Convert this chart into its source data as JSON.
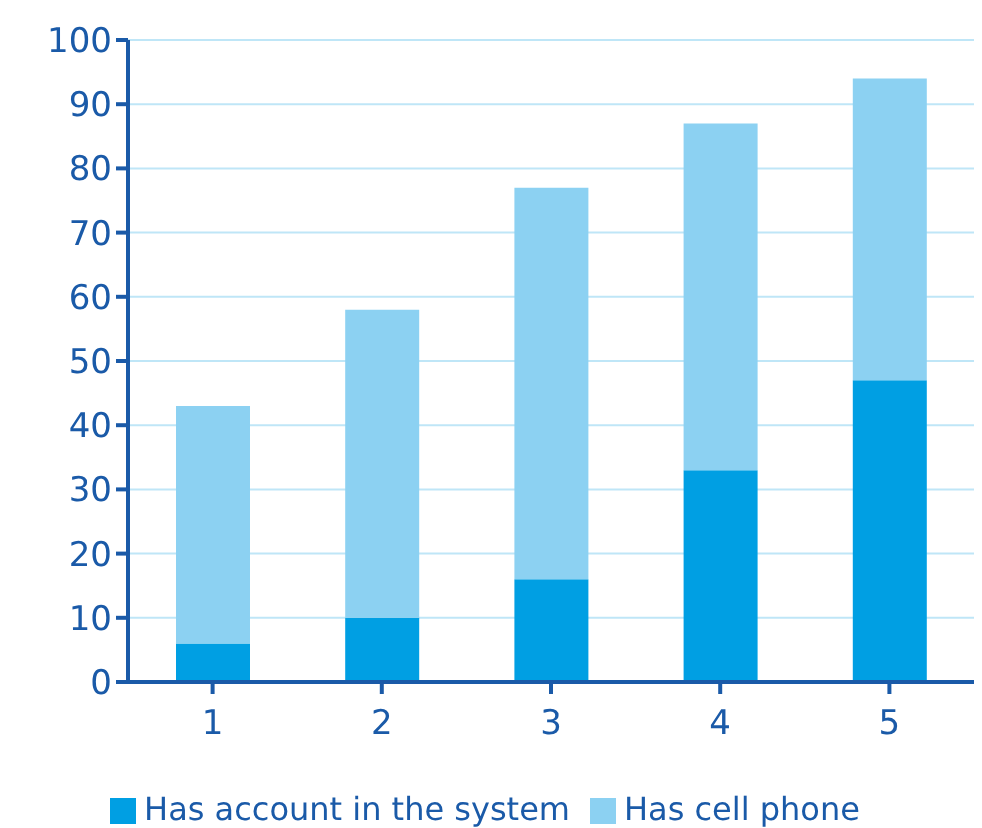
{
  "chart_data": {
    "type": "bar",
    "stacked": true,
    "categories": [
      "1",
      "2",
      "3",
      "4",
      "5"
    ],
    "series": [
      {
        "name": "Has account in the system",
        "color": "#009fe3",
        "values": [
          6,
          10,
          16,
          33,
          47
        ]
      },
      {
        "name": "Has cell phone",
        "color": "#8cd1f2",
        "values": [
          37,
          48,
          61,
          54,
          47
        ]
      }
    ],
    "ylim": [
      0,
      100
    ],
    "yticks": [
      0,
      10,
      20,
      30,
      40,
      50,
      60,
      70,
      80,
      90,
      100
    ],
    "grid": "y",
    "legend": "bottom"
  }
}
